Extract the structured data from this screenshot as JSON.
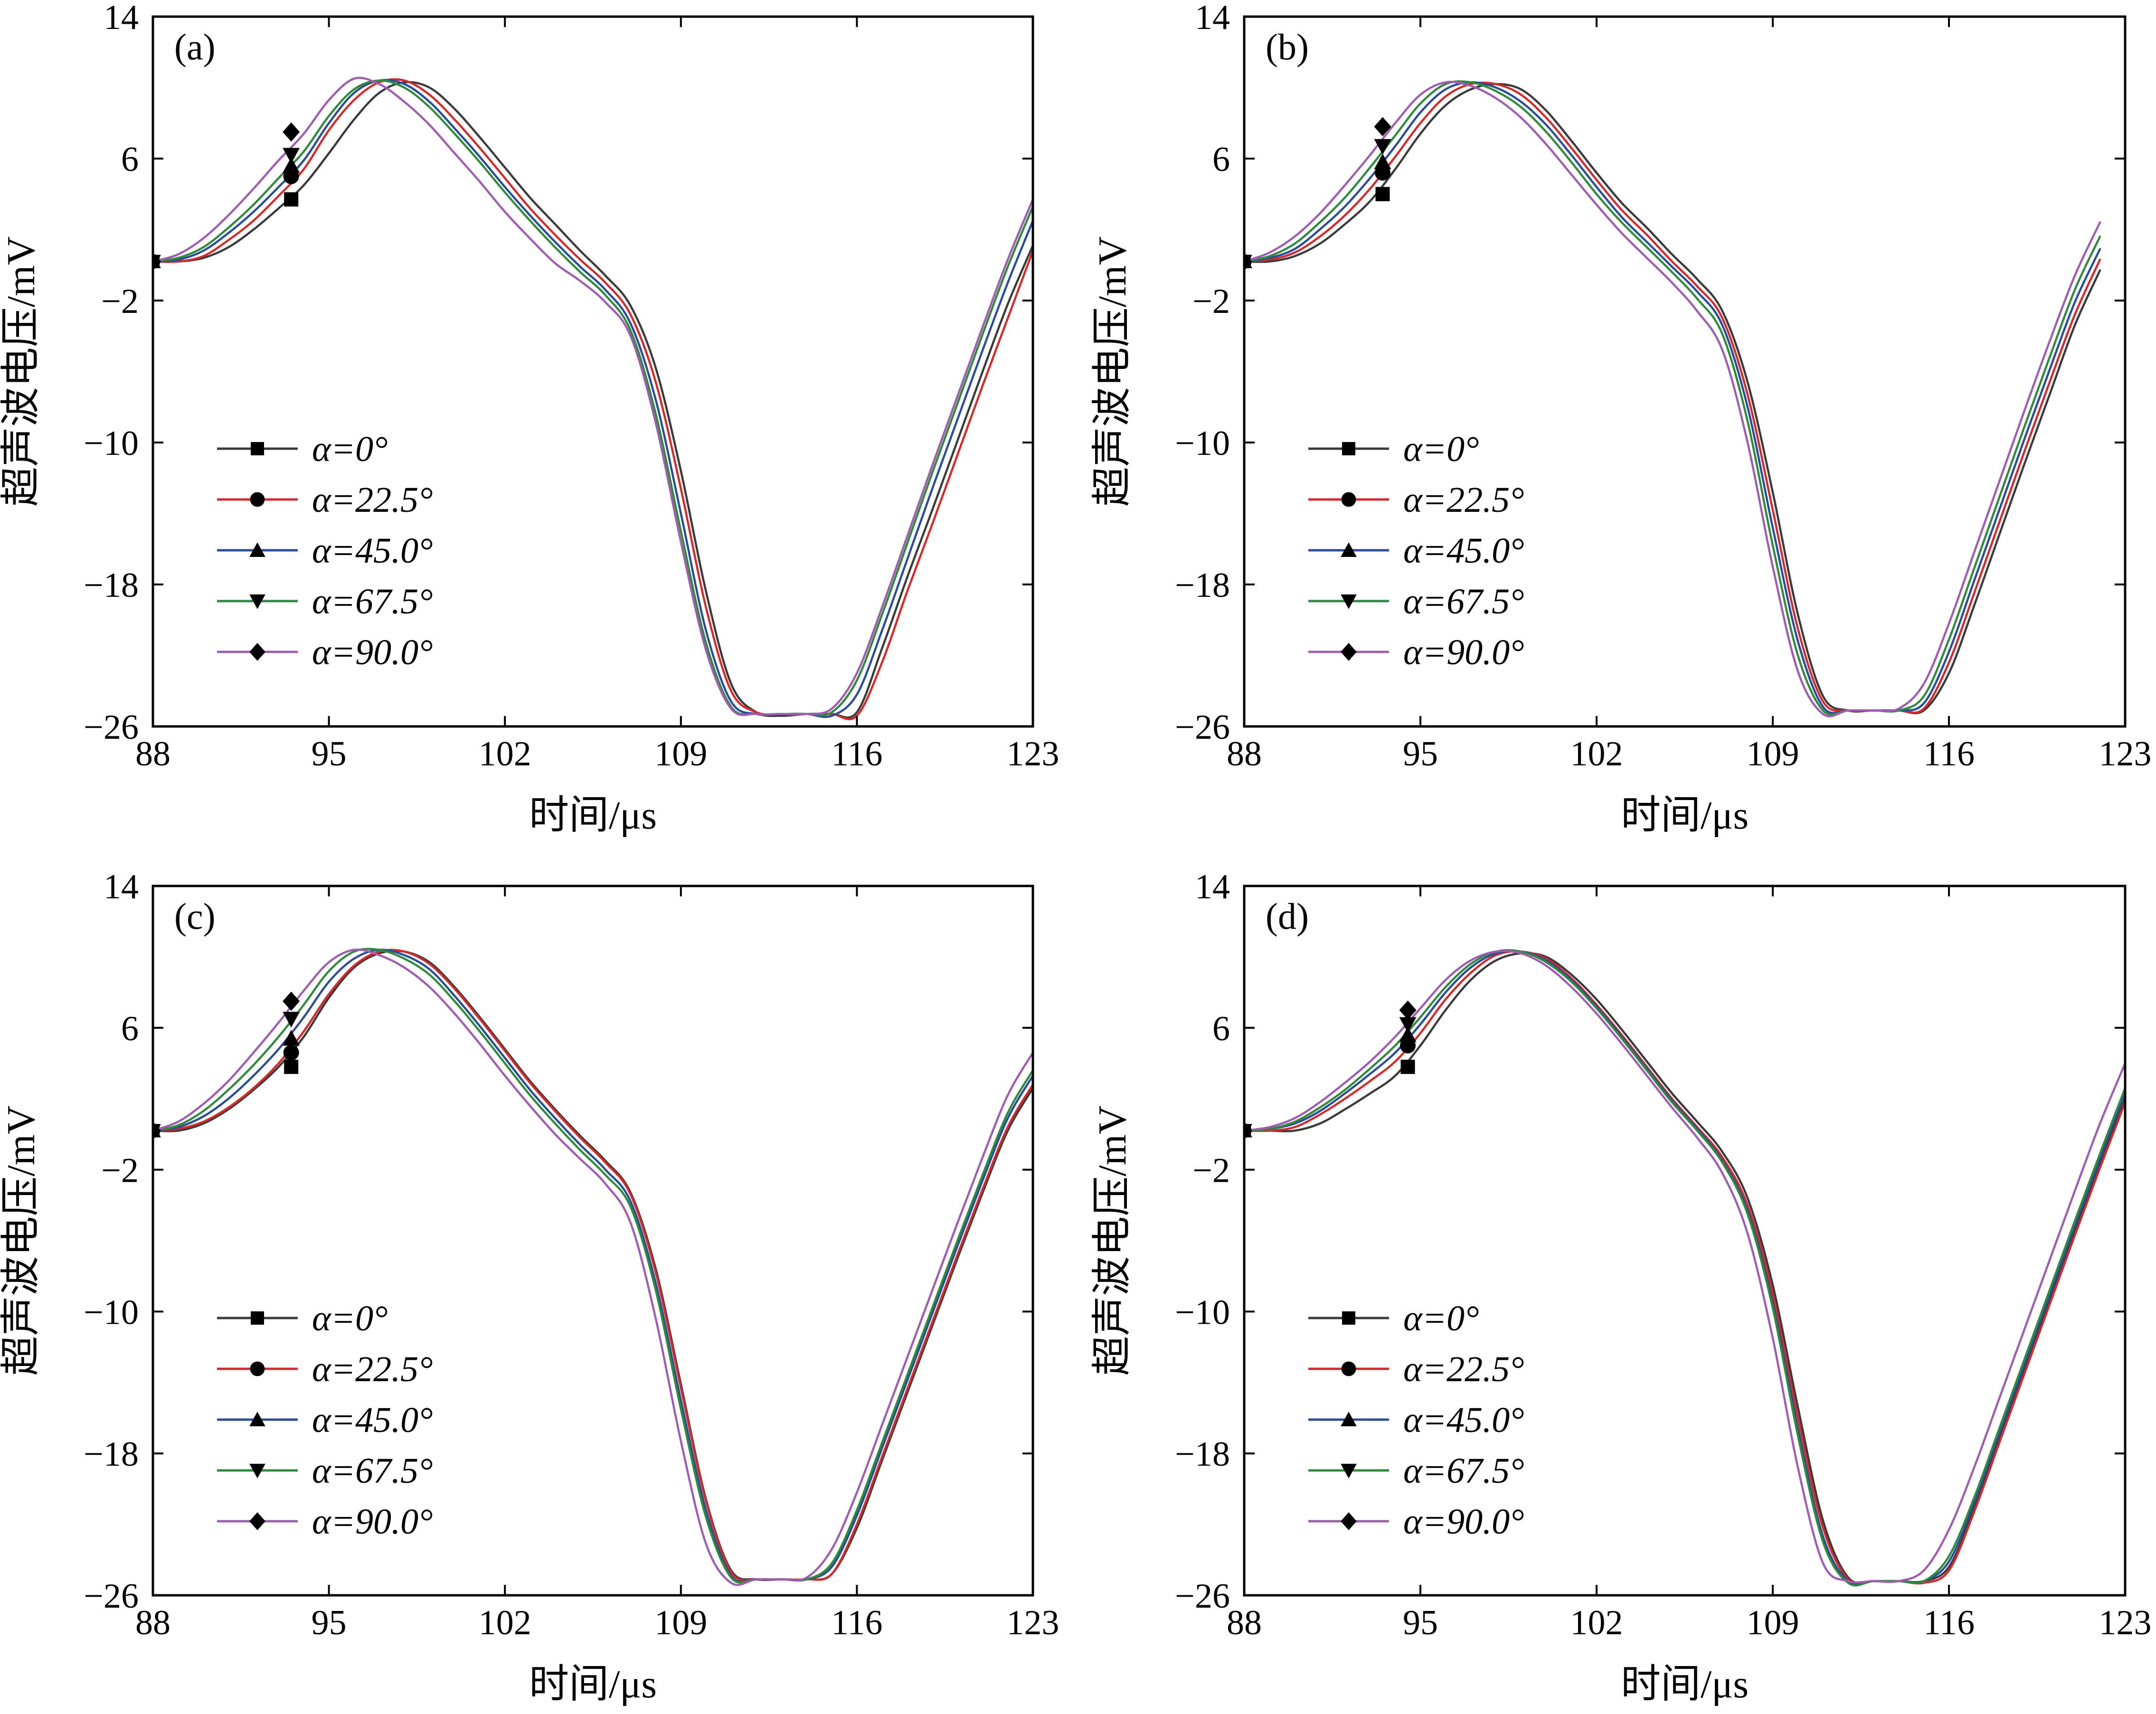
{
  "colors": {
    "series": [
      "#3a3a3a",
      "#d62a2a",
      "#2a4c9a",
      "#2e8b3c",
      "#a05cb0"
    ],
    "marker": "#000000"
  },
  "axes": {
    "xlabel": "时间/μs",
    "ylabel": "超声波电压/mV",
    "xlim": [
      88,
      123
    ],
    "ylim": [
      -26,
      14
    ],
    "xticks": [
      "88",
      "95",
      "102",
      "109",
      "116",
      "123"
    ],
    "yticks": [
      "14",
      "6",
      "−2",
      "−10",
      "−18",
      "−26"
    ]
  },
  "legend": [
    "α=0°",
    "α=22.5°",
    "α=45.0°",
    "α=67.5°",
    "α=90.0°"
  ],
  "chart_data": [
    {
      "type": "line",
      "panel": "(a)",
      "xlim": [
        88,
        123
      ],
      "ylim": [
        -26,
        14
      ],
      "xlabel": "时间/μs",
      "ylabel": "超声波电压/mV",
      "legend_position": "left-middle",
      "x": [
        88,
        89,
        90,
        91,
        92,
        93,
        94,
        95,
        96,
        97,
        98,
        99,
        100,
        101,
        102,
        103,
        104,
        105,
        106,
        107,
        108,
        109,
        110,
        111,
        112,
        113,
        114,
        115,
        116,
        117,
        118,
        119,
        120,
        121,
        122,
        123
      ],
      "series": [
        {
          "name": "α=0°",
          "values": [
            0.2,
            0.2,
            0.4,
            1.0,
            2.0,
            3.2,
            4.5,
            6.3,
            8.2,
            9.7,
            10.3,
            10.0,
            8.8,
            7.2,
            5.5,
            3.8,
            2.3,
            0.8,
            -0.6,
            -2.3,
            -5.8,
            -11.6,
            -18.4,
            -23.6,
            -25.2,
            -25.4,
            -25.3,
            -25.3,
            -25.2,
            -21.6,
            -17.6,
            -13.8,
            -9.9,
            -6.0,
            -2.2,
            1.1
          ]
        },
        {
          "name": "α=22.5°",
          "values": [
            0.2,
            0.2,
            0.5,
            1.4,
            2.5,
            3.9,
            5.4,
            7.6,
            9.3,
            10.3,
            10.4,
            9.6,
            8.2,
            6.6,
            4.9,
            3.2,
            1.7,
            0.3,
            -1.0,
            -2.8,
            -6.6,
            -12.6,
            -19.3,
            -24.0,
            -25.2,
            -25.3,
            -25.3,
            -25.3,
            -25.4,
            -22.4,
            -18.4,
            -14.6,
            -10.7,
            -6.8,
            -3.0,
            0.8
          ]
        },
        {
          "name": "α=45.0°",
          "values": [
            0.2,
            0.3,
            0.8,
            1.8,
            3.0,
            4.4,
            5.9,
            8.0,
            9.7,
            10.4,
            10.2,
            9.2,
            7.7,
            6.1,
            4.4,
            2.8,
            1.3,
            -0.1,
            -1.4,
            -3.3,
            -7.6,
            -14.0,
            -20.6,
            -24.6,
            -25.3,
            -25.3,
            -25.3,
            -25.4,
            -24.2,
            -20.6,
            -16.6,
            -12.6,
            -8.7,
            -4.8,
            -1.0,
            2.5
          ]
        },
        {
          "name": "α=67.5°",
          "values": [
            0.2,
            0.4,
            1.0,
            2.1,
            3.4,
            4.9,
            6.4,
            8.4,
            9.9,
            10.4,
            10.0,
            8.9,
            7.4,
            5.8,
            4.1,
            2.5,
            1.0,
            -0.4,
            -1.7,
            -3.7,
            -8.4,
            -15.0,
            -21.3,
            -24.9,
            -25.3,
            -25.3,
            -25.3,
            -25.2,
            -23.4,
            -19.7,
            -15.7,
            -11.7,
            -7.8,
            -3.9,
            -0.1,
            3.3
          ]
        },
        {
          "name": "α=90.0°",
          "values": [
            0.2,
            0.6,
            1.5,
            2.8,
            4.3,
            5.9,
            7.4,
            9.3,
            10.5,
            10.2,
            9.2,
            7.9,
            6.3,
            4.7,
            3.0,
            1.5,
            0.1,
            -0.9,
            -2.1,
            -4.0,
            -8.9,
            -15.6,
            -21.7,
            -25.0,
            -25.3,
            -25.3,
            -25.3,
            -25.0,
            -23.0,
            -19.3,
            -15.3,
            -11.3,
            -7.4,
            -3.5,
            0.3,
            3.7
          ]
        }
      ],
      "markers": {
        "x": 93.5,
        "values": [
          3.7,
          5.0,
          5.6,
          6.2,
          7.5
        ]
      }
    },
    {
      "type": "line",
      "panel": "(b)",
      "xlim": [
        88,
        123
      ],
      "ylim": [
        -26,
        14
      ],
      "xlabel": "时间/μs",
      "ylabel": "超声波电压/mV",
      "legend_position": "left-middle",
      "x": [
        88,
        89,
        90,
        91,
        92,
        93,
        94,
        95,
        96,
        97,
        98,
        99,
        100,
        101,
        102,
        103,
        104,
        105,
        106,
        107,
        108,
        109,
        110,
        111,
        112,
        113,
        114,
        115,
        116,
        117,
        118,
        119,
        120,
        121,
        122
      ],
      "series": [
        {
          "name": "α=0°",
          "values": [
            0.2,
            0.2,
            0.5,
            1.2,
            2.3,
            3.6,
            5.4,
            7.4,
            9.0,
            9.9,
            10.2,
            9.9,
            8.7,
            7.0,
            5.2,
            3.5,
            2.1,
            0.6,
            -0.8,
            -2.6,
            -6.6,
            -12.8,
            -19.7,
            -24.3,
            -25.1,
            -25.1,
            -25.1,
            -25.1,
            -23.0,
            -19.2,
            -15.2,
            -11.2,
            -7.3,
            -3.4,
            -0.3
          ]
        },
        {
          "name": "α=22.5°",
          "values": [
            0.2,
            0.3,
            0.7,
            1.6,
            2.8,
            4.3,
            6.1,
            8.0,
            9.5,
            10.2,
            10.2,
            9.6,
            8.3,
            6.6,
            4.8,
            3.1,
            1.7,
            0.2,
            -1.2,
            -3.0,
            -7.3,
            -13.8,
            -20.5,
            -24.6,
            -25.1,
            -25.1,
            -25.1,
            -25.0,
            -22.4,
            -18.5,
            -14.5,
            -10.5,
            -6.6,
            -2.8,
            0.3
          ]
        },
        {
          "name": "α=45.0°",
          "values": [
            0.2,
            0.4,
            0.9,
            2.0,
            3.3,
            4.9,
            6.7,
            8.6,
            9.9,
            10.3,
            10.0,
            9.2,
            7.9,
            6.2,
            4.4,
            2.7,
            1.3,
            -0.1,
            -1.5,
            -3.4,
            -8.0,
            -14.8,
            -21.2,
            -24.9,
            -25.1,
            -25.1,
            -25.1,
            -24.7,
            -21.8,
            -17.8,
            -13.8,
            -9.8,
            -5.9,
            -2.1,
            0.9
          ]
        },
        {
          "name": "α=67.5°",
          "values": [
            0.2,
            0.5,
            1.2,
            2.4,
            3.8,
            5.5,
            7.3,
            9.1,
            10.2,
            10.3,
            9.8,
            8.9,
            7.5,
            5.8,
            4.0,
            2.4,
            1.0,
            -0.4,
            -1.9,
            -3.9,
            -8.8,
            -15.8,
            -22.0,
            -25.1,
            -25.1,
            -25.1,
            -25.1,
            -24.3,
            -21.1,
            -17.1,
            -13.1,
            -9.1,
            -5.2,
            -1.4,
            1.6
          ]
        },
        {
          "name": "α=90.0°",
          "values": [
            0.2,
            0.7,
            1.6,
            2.9,
            4.5,
            6.2,
            8.0,
            9.6,
            10.3,
            10.1,
            9.4,
            8.3,
            6.8,
            5.1,
            3.4,
            1.8,
            0.4,
            -1.0,
            -2.6,
            -4.8,
            -10.0,
            -17.0,
            -22.9,
            -25.3,
            -25.1,
            -25.1,
            -25.0,
            -23.6,
            -20.2,
            -16.2,
            -12.2,
            -8.2,
            -4.3,
            -0.6,
            2.4
          ]
        }
      ],
      "markers": {
        "x": 93.5,
        "values": [
          4.0,
          5.2,
          5.8,
          6.7,
          7.8
        ]
      }
    },
    {
      "type": "line",
      "panel": "(c)",
      "xlim": [
        88,
        123
      ],
      "ylim": [
        -26,
        14
      ],
      "xlabel": "时间/μs",
      "ylabel": "超声波电压/mV",
      "legend_position": "left-bottom",
      "x": [
        88,
        89,
        90,
        91,
        92,
        93,
        94,
        95,
        96,
        97,
        98,
        99,
        100,
        101,
        102,
        103,
        104,
        105,
        106,
        107,
        108,
        109,
        110,
        111,
        112,
        113,
        114,
        115,
        116,
        117,
        118,
        119,
        120,
        121,
        122,
        123
      ],
      "series": [
        {
          "name": "α=0°",
          "values": [
            0.2,
            0.2,
            0.6,
            1.4,
            2.5,
            3.8,
            5.5,
            7.7,
            9.4,
            10.2,
            10.3,
            9.7,
            8.3,
            6.6,
            4.8,
            3.0,
            1.4,
            -0.1,
            -1.5,
            -3.3,
            -7.6,
            -14.1,
            -20.6,
            -24.6,
            -25.1,
            -25.1,
            -25.1,
            -24.8,
            -22.2,
            -18.4,
            -14.6,
            -10.8,
            -7.0,
            -3.3,
            0.2,
            2.6
          ]
        },
        {
          "name": "α=22.5°",
          "values": [
            0.2,
            0.3,
            0.7,
            1.5,
            2.6,
            4.0,
            5.8,
            7.9,
            9.5,
            10.3,
            10.3,
            9.6,
            8.2,
            6.5,
            4.7,
            2.9,
            1.3,
            -0.2,
            -1.6,
            -3.4,
            -7.8,
            -14.3,
            -20.7,
            -24.7,
            -25.1,
            -25.1,
            -25.1,
            -24.8,
            -22.0,
            -18.2,
            -14.4,
            -10.6,
            -6.8,
            -3.1,
            0.4,
            2.8
          ]
        },
        {
          "name": "α=45.0°",
          "values": [
            0.2,
            0.4,
            1.0,
            2.0,
            3.3,
            4.8,
            6.6,
            8.6,
            9.9,
            10.4,
            10.1,
            9.3,
            7.8,
            6.1,
            4.3,
            2.5,
            0.9,
            -0.6,
            -2.0,
            -3.8,
            -8.4,
            -15.0,
            -21.2,
            -24.9,
            -25.1,
            -25.1,
            -25.1,
            -24.4,
            -21.5,
            -17.7,
            -13.9,
            -10.1,
            -6.3,
            -2.6,
            0.9,
            3.3
          ]
        },
        {
          "name": "α=67.5°",
          "values": [
            0.2,
            0.5,
            1.3,
            2.5,
            3.9,
            5.5,
            7.3,
            9.2,
            10.3,
            10.4,
            9.9,
            9.0,
            7.5,
            5.8,
            4.0,
            2.2,
            0.6,
            -0.9,
            -2.3,
            -4.1,
            -8.8,
            -15.5,
            -21.6,
            -25.0,
            -25.1,
            -25.1,
            -25.1,
            -24.2,
            -21.2,
            -17.4,
            -13.6,
            -9.8,
            -6.0,
            -2.3,
            1.2,
            3.6
          ]
        },
        {
          "name": "α=90.0°",
          "values": [
            0.2,
            0.7,
            1.7,
            3.0,
            4.6,
            6.3,
            8.1,
            9.7,
            10.4,
            10.1,
            9.4,
            8.3,
            6.8,
            5.1,
            3.3,
            1.6,
            0.0,
            -1.4,
            -2.8,
            -5.0,
            -10.4,
            -17.3,
            -23.1,
            -25.3,
            -25.1,
            -25.1,
            -25.0,
            -23.4,
            -20.2,
            -16.4,
            -12.6,
            -8.8,
            -5.0,
            -1.3,
            2.2,
            4.6
          ]
        }
      ],
      "markers": {
        "x": 93.5,
        "values": [
          3.8,
          4.6,
          5.4,
          6.5,
          7.5
        ]
      }
    },
    {
      "type": "line",
      "panel": "(d)",
      "xlim": [
        88,
        123
      ],
      "ylim": [
        -26,
        14
      ],
      "xlabel": "时间/μs",
      "ylabel": "超声波电压/mV",
      "legend_position": "left-bottom",
      "x": [
        88,
        89,
        90,
        91,
        92,
        93,
        94,
        95,
        96,
        97,
        98,
        99,
        100,
        101,
        102,
        103,
        104,
        105,
        106,
        107,
        108,
        109,
        110,
        111,
        112,
        113,
        114,
        115,
        116,
        117,
        118,
        119,
        120,
        121,
        122,
        123
      ],
      "series": [
        {
          "name": "α=0°",
          "values": [
            0.2,
            0.2,
            0.2,
            0.6,
            1.4,
            2.3,
            3.3,
            5.0,
            7.0,
            8.7,
            9.8,
            10.2,
            10.0,
            9.0,
            7.6,
            5.9,
            4.1,
            2.3,
            0.7,
            -1.0,
            -3.6,
            -8.5,
            -15.4,
            -21.8,
            -25.0,
            -25.2,
            -25.2,
            -25.2,
            -24.4,
            -21.1,
            -17.2,
            -13.3,
            -9.4,
            -5.5,
            -1.7,
            2.0
          ]
        },
        {
          "name": "α=22.5°",
          "values": [
            0.2,
            0.2,
            0.4,
            1.1,
            2.0,
            3.0,
            4.1,
            5.7,
            7.6,
            9.1,
            10.1,
            10.3,
            9.9,
            8.8,
            7.3,
            5.6,
            3.8,
            2.0,
            0.4,
            -1.3,
            -4.0,
            -9.0,
            -16.0,
            -22.2,
            -25.1,
            -25.2,
            -25.2,
            -25.3,
            -24.6,
            -21.3,
            -17.4,
            -13.5,
            -9.6,
            -5.7,
            -1.9,
            1.8
          ]
        },
        {
          "name": "α=45.0°",
          "values": [
            0.2,
            0.3,
            0.6,
            1.3,
            2.3,
            3.4,
            4.6,
            6.2,
            8.0,
            9.4,
            10.2,
            10.3,
            9.8,
            8.7,
            7.2,
            5.5,
            3.7,
            1.9,
            0.3,
            -1.5,
            -4.3,
            -9.5,
            -16.6,
            -22.7,
            -25.2,
            -25.2,
            -25.2,
            -25.2,
            -24.1,
            -20.8,
            -16.9,
            -13.0,
            -9.1,
            -5.2,
            -1.4,
            2.3
          ]
        },
        {
          "name": "α=67.5°",
          "values": [
            0.2,
            0.3,
            0.7,
            1.5,
            2.5,
            3.7,
            5.0,
            6.6,
            8.3,
            9.6,
            10.3,
            10.3,
            9.7,
            8.6,
            7.1,
            5.4,
            3.6,
            1.8,
            0.2,
            -1.6,
            -4.5,
            -9.8,
            -17.0,
            -23.0,
            -25.3,
            -25.2,
            -25.2,
            -25.2,
            -23.8,
            -20.5,
            -16.6,
            -12.7,
            -8.8,
            -4.9,
            -1.1,
            2.6
          ]
        },
        {
          "name": "α=90.0°",
          "values": [
            0.2,
            0.4,
            0.9,
            1.8,
            2.9,
            4.1,
            5.5,
            7.1,
            8.7,
            9.8,
            10.3,
            10.2,
            9.5,
            8.3,
            6.8,
            5.1,
            3.3,
            1.5,
            -0.2,
            -2.2,
            -5.6,
            -11.5,
            -18.8,
            -24.2,
            -25.2,
            -25.2,
            -25.2,
            -24.6,
            -22.3,
            -18.8,
            -14.9,
            -11.0,
            -7.1,
            -3.2,
            0.6,
            4.0
          ]
        }
      ],
      "markers": {
        "x": 94.5,
        "values": [
          3.8,
          5.0,
          5.6,
          6.2,
          7.0
        ]
      }
    }
  ]
}
